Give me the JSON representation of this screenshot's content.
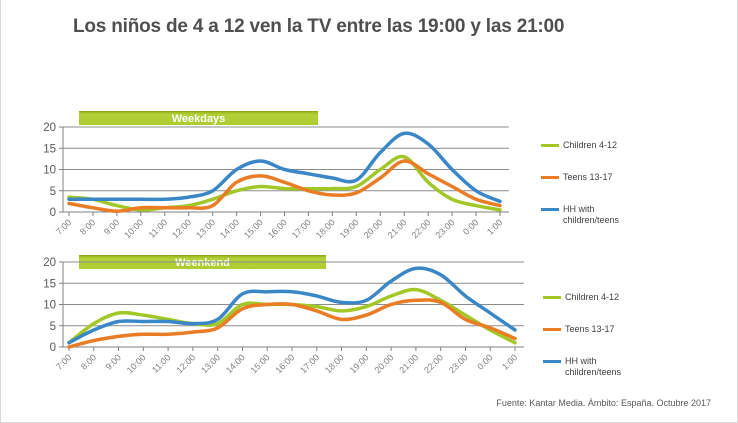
{
  "page": {
    "title": "Los niños de 4 a 12 ven la TV entre las 19:00 y las 21:00",
    "footer": "Fuente: Kantar Media. Ámbito: España. Octubre 2017"
  },
  "colors": {
    "banner_green": "#AECB2F",
    "children_green": "#A1C827",
    "teens_orange": "#E97C24",
    "hh_blue": "#3A87C8",
    "gridline_gray": "#8c8c8c",
    "axis_gray": "#808080",
    "ytick_text": "#595959",
    "xtick_text": "#7f7f7f",
    "title_text": "#4f4f4f"
  },
  "chart_data": [
    {
      "type": "line",
      "title": "Weekdays",
      "x": [
        "7:00",
        "8:00",
        "9:00",
        "10:00",
        "11:00",
        "12:00",
        "13:00",
        "14:00",
        "15:00",
        "16:00",
        "17:00",
        "18:00",
        "19:00",
        "20:00",
        "21:00",
        "22:00",
        "23:00",
        "0:00",
        "1:00"
      ],
      "xlabel": "",
      "ylabel": "",
      "ylim": [
        0,
        20
      ],
      "yticks": [
        0,
        5,
        10,
        15,
        20
      ],
      "grid": true,
      "legend_position": "right",
      "series": [
        {
          "name": "Children 4-12",
          "color": "#A1C827",
          "values": [
            3.5,
            3,
            1.5,
            0.5,
            1,
            1.5,
            3,
            5,
            6,
            5.5,
            5.5,
            5.5,
            6,
            10,
            13,
            7,
            3,
            1.5,
            0.5
          ]
        },
        {
          "name": "Teens 13-17",
          "color": "#E97C24",
          "values": [
            2,
            1,
            0.2,
            1,
            1,
            1,
            1.5,
            7,
            8.5,
            7,
            5,
            4,
            4.5,
            8,
            12,
            9,
            6,
            3,
            1.5
          ]
        },
        {
          "name": "HH with children/teens",
          "color": "#3A87C8",
          "values": [
            3,
            3,
            3,
            3,
            3,
            3.5,
            5,
            10,
            12,
            10,
            9,
            8,
            7.5,
            14,
            18.5,
            16,
            10,
            5,
            2.5
          ]
        }
      ]
    },
    {
      "type": "line",
      "title": "Weenkend",
      "x": [
        "7:00",
        "8:00",
        "9:00",
        "10:00",
        "11:00",
        "12:00",
        "13:00",
        "14:00",
        "15:00",
        "16:00",
        "17:00",
        "18:00",
        "19:00",
        "20:00",
        "21:00",
        "22:00",
        "23:00",
        "0:00",
        "1:00"
      ],
      "xlabel": "",
      "ylabel": "",
      "ylim": [
        0,
        20
      ],
      "yticks": [
        0,
        5,
        10,
        15,
        20
      ],
      "grid": true,
      "legend_position": "right",
      "series": [
        {
          "name": "Children 4-12",
          "color": "#A1C827",
          "values": [
            1,
            5.5,
            8,
            7.5,
            6.5,
            5.5,
            5.5,
            10,
            10,
            10,
            9.5,
            8.5,
            9.5,
            12,
            13.5,
            11,
            7.5,
            4,
            1
          ]
        },
        {
          "name": "Teens 13-17",
          "color": "#E97C24",
          "values": [
            0,
            1.5,
            2.5,
            3,
            3,
            3.5,
            4.5,
            9,
            10,
            10,
            8.5,
            6.5,
            7.5,
            10,
            11,
            10.5,
            6.5,
            4.5,
            2
          ]
        },
        {
          "name": "HH with children/teens",
          "color": "#3A87C8",
          "values": [
            1,
            4,
            6,
            6,
            6,
            5.5,
            6.5,
            12.5,
            13,
            13,
            12,
            10.5,
            11,
            15.5,
            18.5,
            17,
            12,
            8,
            4
          ]
        }
      ]
    }
  ]
}
